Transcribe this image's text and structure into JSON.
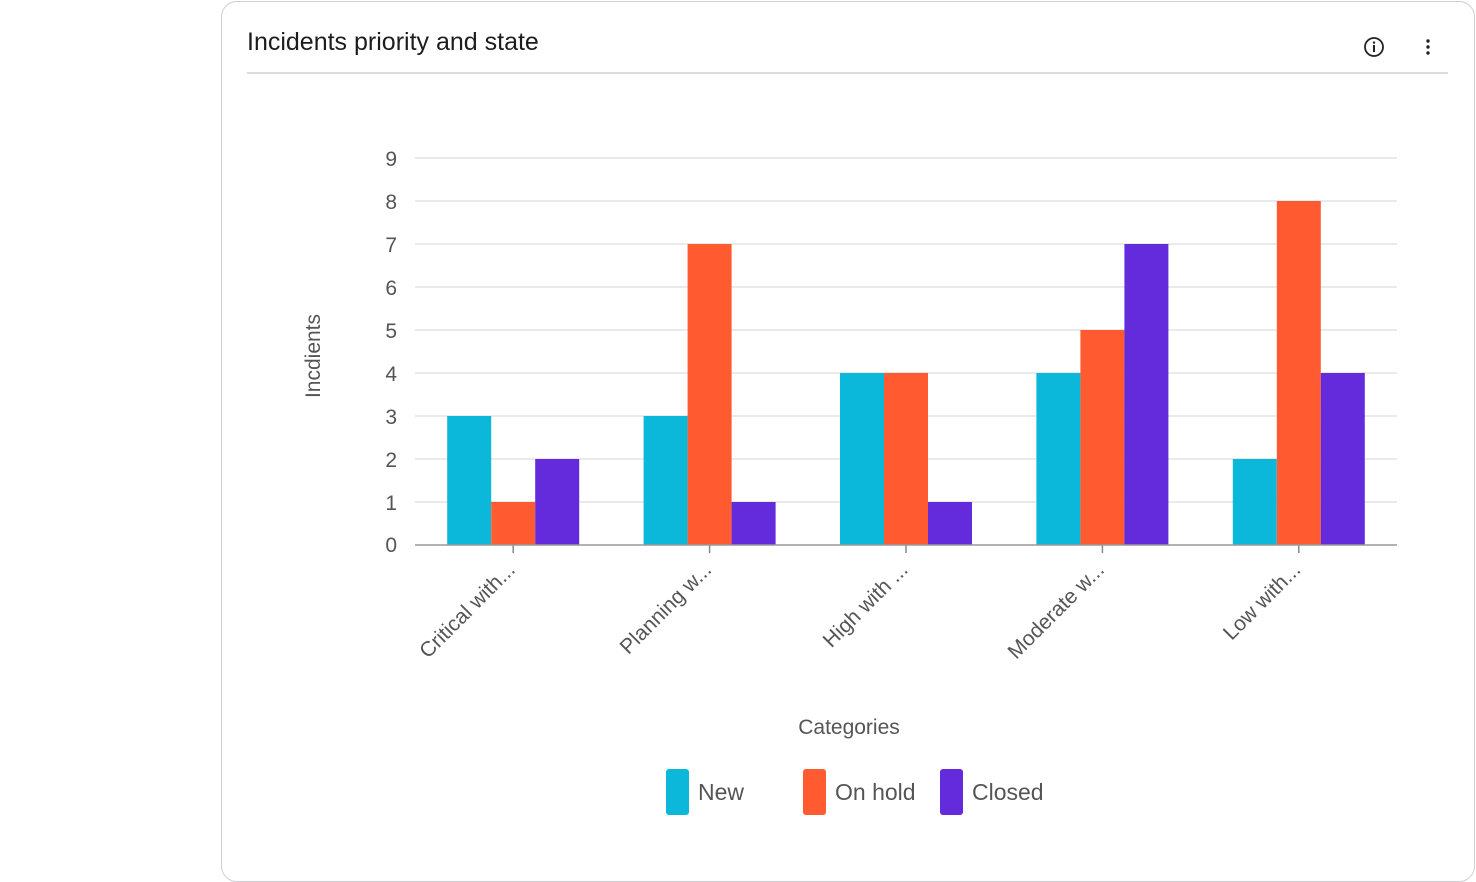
{
  "card": {
    "title": "Incidents priority and state",
    "info_icon": "info-circle-icon",
    "menu_icon": "vertical-ellipsis-icon"
  },
  "chart_data": {
    "type": "bar",
    "title": "Incidents priority and state",
    "xlabel": "Categories",
    "ylabel": "Incdients",
    "categories": [
      "Critical with...",
      "Planning w...",
      "High with ...",
      "Moderate w...",
      "Low with..."
    ],
    "series": [
      {
        "name": "New",
        "color": "#0bb8d9",
        "values": [
          3,
          3,
          4,
          4,
          2
        ]
      },
      {
        "name": "On hold",
        "color": "#ff5a30",
        "values": [
          1,
          7,
          4,
          5,
          8
        ]
      },
      {
        "name": "Closed",
        "color": "#642bdc",
        "values": [
          2,
          1,
          1,
          7,
          4
        ]
      }
    ],
    "ylim": [
      0,
      9
    ],
    "yticks": [
      0,
      1,
      2,
      3,
      4,
      5,
      6,
      7,
      8,
      9
    ],
    "grid": true,
    "legend_position": "bottom"
  }
}
